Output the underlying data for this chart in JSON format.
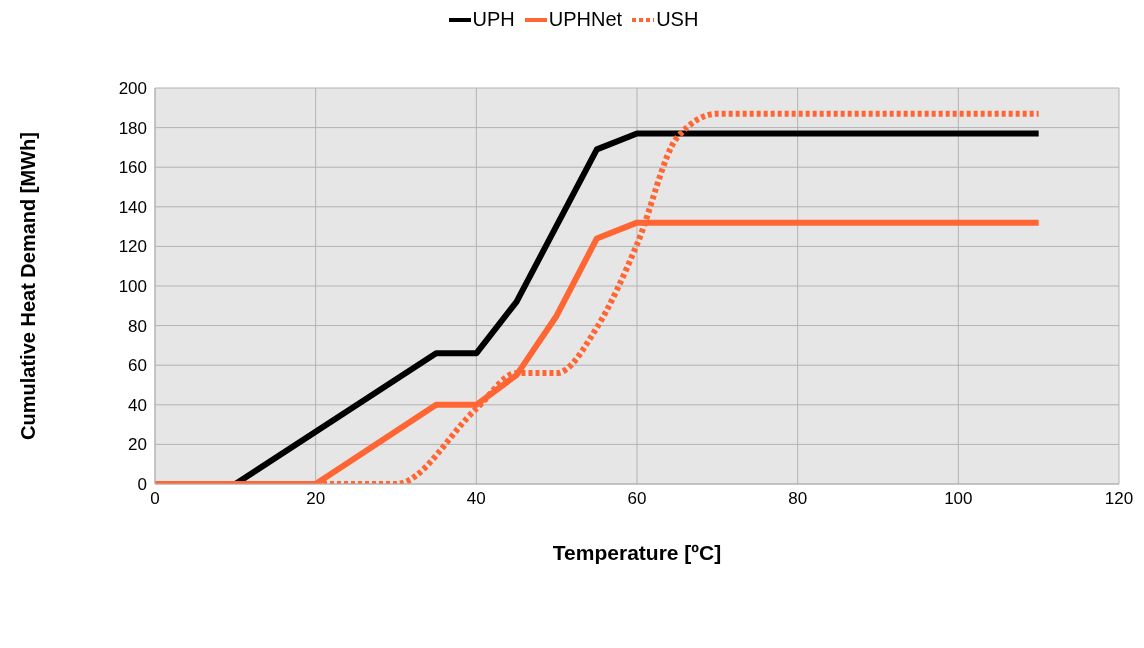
{
  "chart_data": {
    "type": "line",
    "xlabel": "Temperature [ºC]",
    "ylabel": "Cumulative Heat Demand [MWh]",
    "xlim": [
      0,
      120
    ],
    "xticks": [
      0,
      20,
      40,
      60,
      80,
      100,
      120
    ],
    "ylim": [
      0,
      200
    ],
    "yticks": [
      0,
      20,
      40,
      60,
      80,
      100,
      120,
      140,
      160,
      180,
      200
    ],
    "grid": true,
    "legend": "top",
    "marker": "none",
    "series": [
      {
        "name": "UPH",
        "color": "#000000",
        "line_style": "solid",
        "x": [
          0,
          10,
          35,
          40,
          45,
          55,
          60,
          110
        ],
        "values": [
          0,
          0,
          66,
          66,
          92,
          169,
          177,
          177
        ]
      },
      {
        "name": "UPHNet",
        "color": "#ff6633",
        "line_style": "solid",
        "x": [
          0,
          20,
          35,
          40,
          45,
          50,
          55,
          60,
          110
        ],
        "values": [
          0,
          0,
          40,
          40,
          55,
          85,
          124,
          132,
          132
        ]
      },
      {
        "name": "USH",
        "color": "#ff6633",
        "line_style": "dotted",
        "x": [
          0,
          30,
          40,
          45,
          50,
          55,
          60,
          65,
          70,
          110
        ],
        "values": [
          0,
          0,
          38,
          56,
          56,
          79,
          121,
          175,
          187,
          187
        ]
      }
    ]
  }
}
